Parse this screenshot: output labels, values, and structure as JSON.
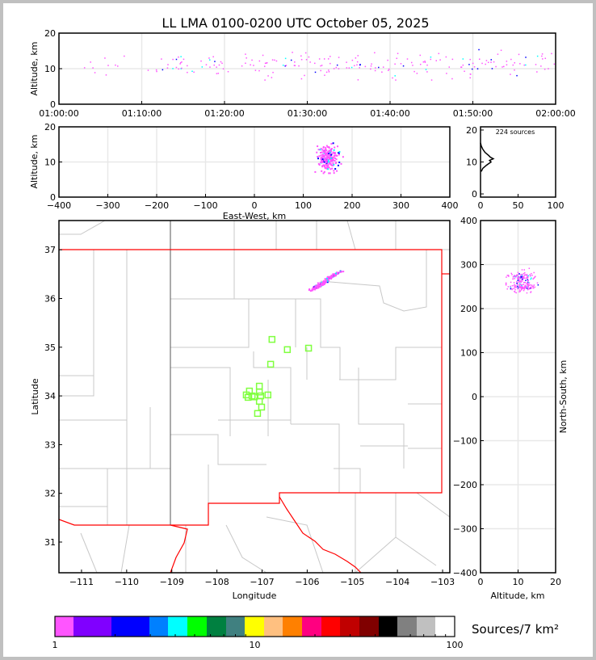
{
  "chart_data": [
    {
      "type": "scatter",
      "panel": "time-altitude",
      "title": "LL LMA 0100-0200 UTC October 05, 2025",
      "xlabel": "",
      "ylabel": "Altitude, km",
      "xlim": [
        "01:00:00",
        "02:00:00"
      ],
      "ylim": [
        0,
        20
      ],
      "xticks": [
        "01:00:00",
        "01:10:00",
        "01:20:00",
        "01:30:00",
        "01:40:00",
        "01:50:00",
        "02:00:00"
      ],
      "yticks": [
        "0",
        "10",
        "20"
      ],
      "grid": true
    },
    {
      "type": "scatter",
      "panel": "eastwest-altitude",
      "xlabel": "East-West, km",
      "ylabel": "Altitude, km",
      "xlim": [
        -400,
        400
      ],
      "ylim": [
        0,
        20
      ],
      "xticks": [
        "−400",
        "−300",
        "−200",
        "−100",
        "0",
        "100",
        "200",
        "300",
        "400"
      ],
      "yticks": [
        "0",
        "10",
        "20"
      ],
      "grid": true
    },
    {
      "type": "line",
      "panel": "altitude-histogram",
      "annotation": "224 sources",
      "xlim": [
        0,
        100
      ],
      "ylim": [
        -1,
        21
      ],
      "xticks": [
        "0",
        "50",
        "100"
      ],
      "yticks": [
        "0",
        "10",
        "20"
      ],
      "altitudes": [
        7,
        8,
        9,
        10,
        10.5,
        11,
        11.5,
        12,
        13,
        14,
        15,
        16
      ],
      "counts": [
        1,
        3,
        8,
        14,
        12,
        17,
        13,
        11,
        6,
        3,
        1,
        0
      ]
    },
    {
      "type": "scatter",
      "panel": "plan-view",
      "xlabel": "Longitude",
      "ylabel": "Latitude",
      "xlim": [
        -111.5,
        -102.84
      ],
      "ylim": [
        30.37,
        37.6
      ],
      "xticks": [
        "−111",
        "−110",
        "−109",
        "−108",
        "−107",
        "−106",
        "−105",
        "−104",
        "−103"
      ],
      "yticks": [
        "31",
        "32",
        "33",
        "34",
        "35",
        "36",
        "37"
      ],
      "stations": [
        [
          -106.78,
          35.16
        ],
        [
          -106.44,
          34.95
        ],
        [
          -105.97,
          34.98
        ],
        [
          -106.81,
          34.65
        ],
        [
          -107.06,
          34.2
        ],
        [
          -107.28,
          34.1
        ],
        [
          -107.06,
          34.08
        ],
        [
          -107.35,
          34.02
        ],
        [
          -107.31,
          33.97
        ],
        [
          -107.22,
          34.0
        ],
        [
          -107.17,
          33.98
        ],
        [
          -107.03,
          34.0
        ],
        [
          -106.87,
          34.02
        ],
        [
          -107.06,
          33.89
        ],
        [
          -107.01,
          33.77
        ],
        [
          -107.1,
          33.64
        ]
      ],
      "station_color": "#80ff40",
      "state_border_color": "#ff0000",
      "source_clusters": [
        {
          "lon": -105.45,
          "lat": 36.45
        },
        {
          "lon": -105.72,
          "lat": 36.27
        }
      ]
    },
    {
      "type": "scatter",
      "panel": "altitude-northsouth",
      "xlabel": "Altitude, km",
      "ylabel": "North-South, km",
      "xlim": [
        0,
        20
      ],
      "ylim": [
        -400,
        400
      ],
      "xticks": [
        "0",
        "10",
        "20"
      ],
      "yticks": [
        "−400",
        "−300",
        "−200",
        "−100",
        "0",
        "100",
        "200",
        "300",
        "400"
      ]
    },
    {
      "type": "colorbar",
      "label": "Sources/7 km²",
      "scale": "log",
      "range": [
        1,
        100
      ],
      "ticks": [
        "1",
        "10",
        "100"
      ],
      "colors": [
        "#ff55ff",
        "#8000ff",
        "#0000ff",
        "#0080ff",
        "#00ffff",
        "#00ff00",
        "#008040",
        "#408080",
        "#ffff00",
        "#ffc080",
        "#ff8000",
        "#ff0080",
        "#ff0000",
        "#c00000",
        "#800000",
        "#000000",
        "#808080",
        "#c0c0c0",
        "#ffffff"
      ]
    }
  ],
  "source_count_label": "224 sources",
  "colors": {
    "primary_source": "#ff55ff",
    "dense_source": "#0000ff",
    "grid": "#e8e8e8",
    "county": "#c8c8c8"
  }
}
